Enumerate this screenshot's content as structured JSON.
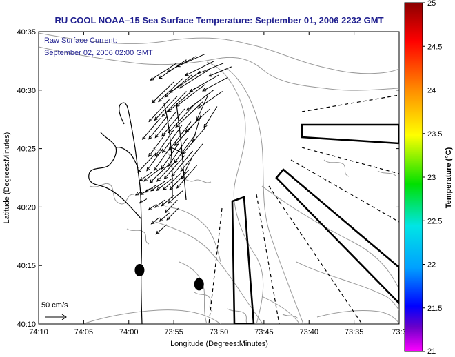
{
  "chart_data": {
    "type": "map",
    "title": "RU COOL  NOAA–15  Sea Surface Temperature:  September 01, 2006 2232 GMT",
    "annotation_lines": [
      "Raw Surface Current:",
      "September 02, 2006 02:00 GMT"
    ],
    "scale_label": "50 cm/s",
    "xlabel": "Longitude (Degrees:Minutes)",
    "ylabel": "Latitude (Degrees:Minutes)",
    "x_ticks": [
      "74:10",
      "74:05",
      "74:00",
      "73:55",
      "73:50",
      "73:45",
      "73:40",
      "73:35",
      "73:3"
    ],
    "y_ticks": [
      "40:35",
      "40:30",
      "40:25",
      "40:20",
      "40:15",
      "40:10"
    ],
    "xlim_west_minutes": [
      4450,
      4410
    ],
    "ylim_minutes": [
      2410,
      2435
    ],
    "colorbar": {
      "label": "Temperature (°C)",
      "ticks": [
        "25",
        "24.5",
        "24",
        "23.5",
        "23",
        "22.5",
        "22",
        "21.5",
        "21"
      ],
      "range": [
        21,
        25
      ],
      "colors": [
        "#8b0000",
        "#ff0000",
        "#ff8c00",
        "#ffff00",
        "#00e000",
        "#00e5e5",
        "#00a0ff",
        "#0000ff",
        "#6a00c8",
        "#ff00ff"
      ]
    },
    "dots": [
      {
        "lon_west_min": 4438.8,
        "lat_min": 2414.6
      },
      {
        "lon_west_min": 4432.2,
        "lat_min": 2413.4
      }
    ],
    "current_vectors": [
      [
        4431.5,
        2433.1,
        -3.5,
        -1.2
      ],
      [
        4432.5,
        2432.9,
        -3.6,
        -1.5
      ],
      [
        4433.6,
        2432.6,
        -3.4,
        -1.8
      ],
      [
        4434.7,
        2432.3,
        -3.2,
        -1.6
      ],
      [
        4430.5,
        2432.5,
        -3.6,
        -1.4
      ],
      [
        4429.5,
        2432.3,
        -3.2,
        -1.0
      ],
      [
        4428.6,
        2432.0,
        -2.8,
        -0.9
      ],
      [
        4431.0,
        2431.8,
        -3.7,
        -1.8
      ],
      [
        4432.0,
        2431.6,
        -3.8,
        -2.0
      ],
      [
        4433.0,
        2431.3,
        -3.3,
        -2.1
      ],
      [
        4434.0,
        2431.0,
        -3.0,
        -2.2
      ],
      [
        4435.0,
        2430.7,
        -2.7,
        -2.0
      ],
      [
        4430.0,
        2431.3,
        -3.6,
        -1.6
      ],
      [
        4429.0,
        2431.1,
        -3.1,
        -1.3
      ],
      [
        4431.5,
        2430.5,
        -3.6,
        -2.1
      ],
      [
        4432.6,
        2430.2,
        -3.4,
        -2.3
      ],
      [
        4433.6,
        2429.9,
        -3.0,
        -2.4
      ],
      [
        4434.6,
        2429.5,
        -2.8,
        -2.3
      ],
      [
        4435.5,
        2429.2,
        -2.5,
        -2.1
      ],
      [
        4430.6,
        2430.0,
        -3.3,
        -1.9
      ],
      [
        4429.6,
        2429.9,
        -3.0,
        -1.6
      ],
      [
        4431.8,
        2429.0,
        -3.3,
        -2.4
      ],
      [
        4432.8,
        2428.7,
        -3.1,
        -2.6
      ],
      [
        4433.8,
        2428.4,
        -2.8,
        -2.6
      ],
      [
        4434.8,
        2428.1,
        -2.5,
        -2.4
      ],
      [
        4435.7,
        2427.8,
        -2.3,
        -2.2
      ],
      [
        4436.5,
        2427.6,
        -2.2,
        -2.0
      ],
      [
        4431.0,
        2428.4,
        -3.0,
        -2.2
      ],
      [
        4432.2,
        2427.6,
        -3.0,
        -2.6
      ],
      [
        4433.1,
        2427.3,
        -2.7,
        -2.7
      ],
      [
        4434.1,
        2427.0,
        -2.4,
        -2.6
      ],
      [
        4435.0,
        2426.6,
        -2.3,
        -2.5
      ],
      [
        4435.9,
        2426.3,
        -2.1,
        -2.2
      ],
      [
        4431.5,
        2426.8,
        -2.8,
        -2.5
      ],
      [
        4432.6,
        2426.2,
        -2.6,
        -2.7
      ],
      [
        4433.5,
        2425.9,
        -2.4,
        -2.7
      ],
      [
        4434.4,
        2425.5,
        -2.2,
        -2.5
      ],
      [
        4435.3,
        2425.2,
        -2.1,
        -2.3
      ],
      [
        4436.2,
        2425.0,
        -2.0,
        -2.1
      ],
      [
        4437.0,
        2424.6,
        -2.2,
        -1.8
      ],
      [
        4431.8,
        2425.4,
        -2.7,
        -2.6
      ],
      [
        4432.9,
        2424.8,
        -2.6,
        -2.4
      ],
      [
        4433.8,
        2424.4,
        -2.5,
        -2.2
      ],
      [
        4434.7,
        2424.0,
        -2.4,
        -2.0
      ],
      [
        4435.6,
        2423.6,
        -2.3,
        -1.7
      ],
      [
        4436.5,
        2423.3,
        -2.0,
        -1.2
      ],
      [
        4437.4,
        2423.0,
        -1.5,
        -0.8
      ],
      [
        4432.4,
        2423.6,
        -2.5,
        -2.2
      ],
      [
        4433.3,
        2423.2,
        -2.4,
        -1.9
      ],
      [
        4434.2,
        2422.9,
        -2.2,
        -1.6
      ],
      [
        4435.1,
        2422.5,
        -2.0,
        -1.2
      ],
      [
        4436.0,
        2422.2,
        -1.7,
        -0.9
      ],
      [
        4436.9,
        2421.9,
        -1.4,
        -0.7
      ],
      [
        4437.6,
        2421.6,
        -1.2,
        -0.6
      ],
      [
        4434.0,
        2421.4,
        -1.8,
        -1.2
      ],
      [
        4435.0,
        2421.0,
        -1.5,
        -1.0
      ],
      [
        4436.0,
        2420.6,
        -1.2,
        -0.7
      ],
      [
        4437.0,
        2420.2,
        -0.9,
        -0.5
      ],
      [
        4434.5,
        2419.9,
        -1.4,
        -1.1
      ],
      [
        4435.5,
        2419.5,
        -1.2,
        -0.8
      ],
      [
        4436.6,
        2419.1,
        -1.0,
        -0.6
      ],
      [
        4435.8,
        2418.5,
        -1.3,
        -0.9
      ],
      [
        4434.6,
        2420.6,
        -1.5,
        -1.2
      ],
      [
        4438.0,
        2420.7,
        -0.9,
        -0.4
      ],
      [
        4438.6,
        2421.3,
        -0.7,
        -0.3
      ],
      [
        4433.0,
        2424.2,
        -1.3,
        -2.0
      ],
      [
        4432.0,
        2427.9,
        -1.0,
        -2.6
      ],
      [
        4431.2,
        2429.6,
        -1.4,
        -2.4
      ],
      [
        4430.2,
        2428.6,
        -1.6,
        -2.0
      ]
    ]
  }
}
